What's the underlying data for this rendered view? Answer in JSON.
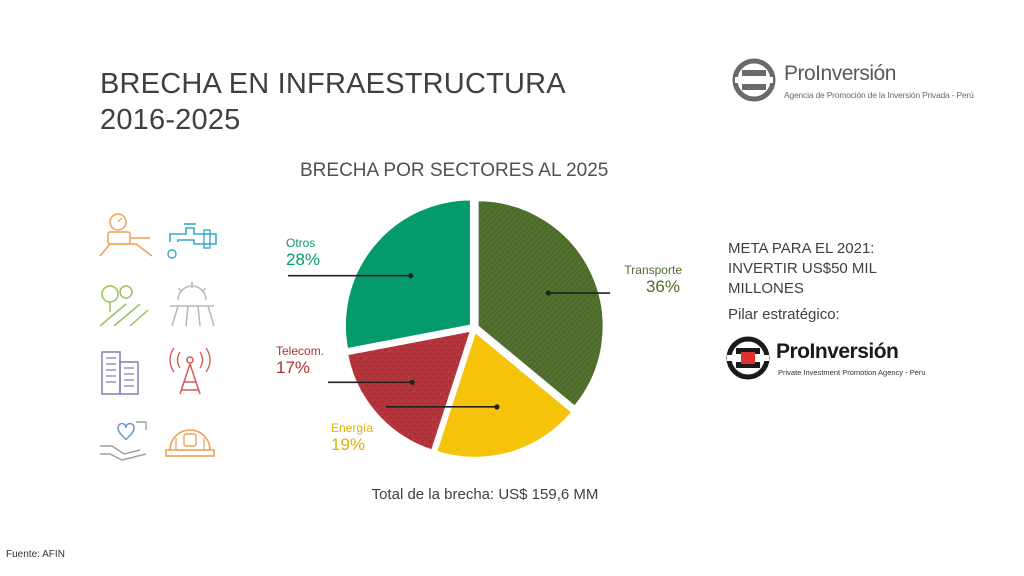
{
  "slide": {
    "title_line1": "BRECHA EN INFRAESTRUCTURA",
    "title_line2": "2016-2025",
    "source": "Fuente: AFIN"
  },
  "brand_top": {
    "name": "ProInversión",
    "tagline": "Agencia de Promoción de la Inversión Privada - Perú"
  },
  "brand_bottom": {
    "name": "ProInversión",
    "tagline": "Private Investment Promotion Agency - Peru"
  },
  "meta": {
    "line1": "META PARA EL 2021:",
    "line2": "INVERTIR US$50 MIL",
    "line3": "MILLONES",
    "pilar": "Pilar estratégico:"
  },
  "total": {
    "text": "Total de la brecha:  US$ 159,6 MM"
  },
  "icons": [
    "water-meter-icon",
    "faucet-pipe-icon",
    "trees-road-icon",
    "sun-field-icon",
    "buildings-icon",
    "antenna-tower-icon",
    "heart-hands-icon",
    "hard-hat-icon"
  ],
  "colors": {
    "transporte": "#4e6b2c",
    "energia": "#f5c40a",
    "telecom": "#ae3138",
    "otros": "#049a6b",
    "icon_orange": "#f0a050",
    "icon_blue": "#3aa8c8",
    "icon_green": "#9bbf5a",
    "icon_purple": "#8a7ab8",
    "icon_red": "#d85858"
  },
  "chart_data": {
    "type": "pie",
    "title": "BRECHA POR SECTORES AL 2025",
    "unit": "%",
    "slices": [
      {
        "name": "Transporte",
        "value": 36,
        "label": "36%",
        "color": "#4e6b2c"
      },
      {
        "name": "Energía",
        "value": 19,
        "label": "19%",
        "color": "#f5c40a"
      },
      {
        "name": "Telecom.",
        "value": 17,
        "label": "17%",
        "color": "#ae3138"
      },
      {
        "name": "Otros",
        "value": 28,
        "label": "28%",
        "color": "#049a6b"
      }
    ],
    "legend": "none"
  }
}
